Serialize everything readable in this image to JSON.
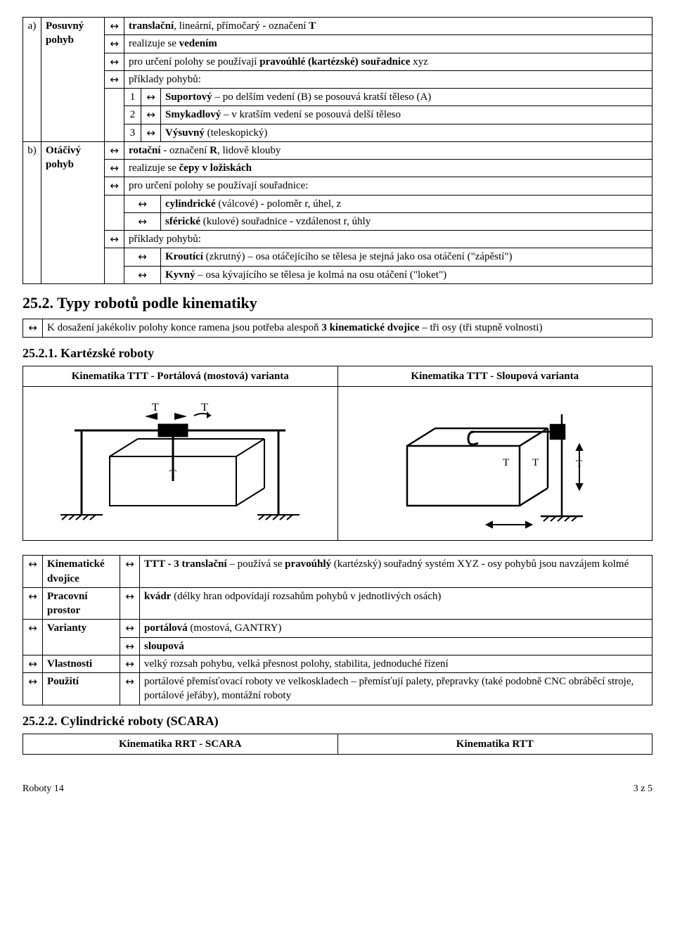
{
  "arrow": "↔",
  "tableA": {
    "rowA": {
      "idx": "a)",
      "label": "Posuvný pohyb",
      "lines": [
        "**translační**, lineární, přímočarý - označení **T**",
        "realizuje se **vedením**",
        "pro určení polohy se používají **pravoúhlé (kartézské) souřadnice** xyz",
        "příklady pohybů:"
      ],
      "examples": [
        {
          "n": "1",
          "txt": "**Suportový** – po delším vedení (B) se posouvá kratší těleso (A)"
        },
        {
          "n": "2",
          "txt": "**Smykadlový** – v kratším vedení se posouvá delší těleso"
        },
        {
          "n": "3",
          "txt": "**Výsuvný** (teleskopický)"
        }
      ]
    },
    "rowB": {
      "idx": "b)",
      "label": "Otáčivý pohyb",
      "lines": [
        "**rotační** - označení **R**, lidově klouby",
        "realizuje se **čepy v  ložiskách**",
        "pro určení polohy se používají souřadnice:"
      ],
      "coords": [
        "**cylindrické** (válcové) - poloměr r, úhel, z",
        "**sférické** (kulové) souřadnice - vzdálenost r, úhly"
      ],
      "exHeader": "příklady pohybů:",
      "examples": [
        "**Kroutící** (zkrutný) – osa otáčejícího se tělesa je stejná jako osa otáčení (\"zápěstí\")",
        "**Kyvný** – osa kývajícího se tělesa je kolmá na osu otáčení (\"loket\")"
      ]
    }
  },
  "sec252": {
    "title": "25.2. Typy robotů podle kinematiky",
    "note": "K dosažení jakékoliv polohy konce ramena jsou potřeba alespoň **3 kinematické dvojice** – tři osy (tři stupně volnosti)"
  },
  "sec2521": {
    "title": "25.2.1. Kartézské roboty",
    "headerL": "Kinematika TTT - Portálová (mostová) varianta",
    "headerR": "Kinematika TTT - Sloupová varianta",
    "rows": [
      {
        "label": "Kinematické dvojice",
        "val": "**TTT - 3 translační** – používá se **pravoúhlý** (kartézský) souřadný systém XYZ - osy pohybů jsou navzájem kolmé"
      },
      {
        "label": "Pracovní prostor",
        "val": "**kvádr** (délky hran odpovídají rozsahům pohybů v jednotlivých osách)"
      }
    ],
    "variantsLabel": "Varianty",
    "variants": [
      "**portálová** (mostová, GANTRY)",
      "**sloupová**"
    ],
    "propsLabel": "Vlastnosti",
    "propsVal": "velký rozsah pohybu, velká přesnost polohy, stabilita, jednoduché řízení",
    "useLabel": "Použití",
    "useVal": "portálové přemísťovací roboty ve velkoskladech – přemísťují palety, přepravky (také podobně CNC obráběcí stroje, portálové jeřáby), montážní roboty"
  },
  "sec2522": {
    "title": "25.2.2. Cylindrické roboty (SCARA)",
    "headerL": "Kinematika RRT - SCARA",
    "headerR": "Kinematika RTT"
  },
  "footer": {
    "left": "Roboty 14",
    "right": "3 z 5"
  }
}
